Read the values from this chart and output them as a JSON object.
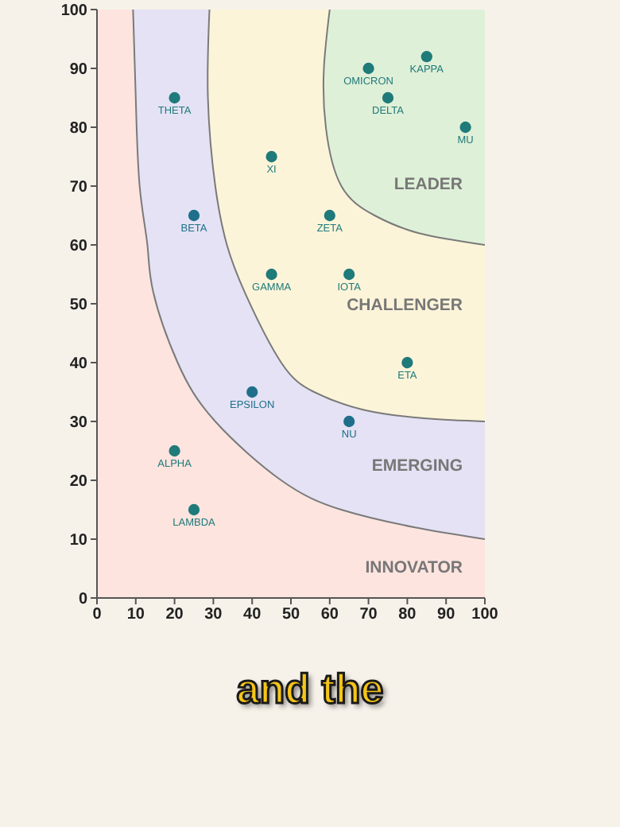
{
  "chart_data": {
    "type": "scatter",
    "xlim": [
      0,
      100
    ],
    "ylim": [
      0,
      100
    ],
    "xticks": [
      0,
      10,
      20,
      30,
      40,
      50,
      60,
      70,
      80,
      90,
      100
    ],
    "yticks": [
      0,
      10,
      20,
      30,
      40,
      50,
      60,
      70,
      80,
      90,
      100
    ],
    "grid": false,
    "legend": false,
    "marker": "circle",
    "series": [
      {
        "type": "line",
        "marker": "none",
        "color": "#7a7a7a",
        "x": [
          9.3,
          10,
          11,
          13,
          14.5,
          20.8,
          30.5,
          47.5,
          63,
          82,
          100
        ],
        "values": [
          100,
          85,
          70,
          60,
          52,
          40,
          30,
          20,
          15,
          12,
          10
        ]
      },
      {
        "type": "line",
        "marker": "none",
        "color": "#7a7a7a",
        "x": [
          29,
          28.6,
          30.5,
          33.5,
          38.4,
          47.5,
          56,
          68.6,
          85,
          100
        ],
        "values": [
          100,
          85,
          70,
          60,
          51.5,
          40,
          35,
          32,
          30.5,
          30
        ]
      },
      {
        "type": "line",
        "marker": "none",
        "color": "#7a7a7a",
        "x": [
          60,
          58.5,
          59,
          63,
          71.6,
          83,
          100
        ],
        "values": [
          100,
          90,
          80,
          70,
          65,
          62,
          60
        ]
      },
      {
        "name": "THETA",
        "color": "#1f7a7a",
        "x": [
          20
        ],
        "values": [
          85
        ]
      },
      {
        "name": "BETA",
        "color": "#1f6f8a",
        "x": [
          25
        ],
        "values": [
          65
        ]
      },
      {
        "name": "XI",
        "color": "#1f7a7a",
        "x": [
          45
        ],
        "values": [
          75
        ]
      },
      {
        "name": "ZETA",
        "color": "#1f7a7a",
        "x": [
          60
        ],
        "values": [
          65
        ]
      },
      {
        "name": "GAMMA",
        "color": "#1f7a7a",
        "x": [
          45
        ],
        "values": [
          55
        ]
      },
      {
        "name": "IOTA",
        "color": "#1f7a7a",
        "x": [
          65
        ],
        "values": [
          55
        ]
      },
      {
        "name": "OMICRON",
        "color": "#1f7a7a",
        "x": [
          70
        ],
        "values": [
          90
        ]
      },
      {
        "name": "KAPPA",
        "color": "#1f7a7a",
        "x": [
          85
        ],
        "values": [
          92
        ]
      },
      {
        "name": "DELTA",
        "color": "#1f7a7a",
        "x": [
          75
        ],
        "values": [
          85
        ]
      },
      {
        "name": "MU",
        "color": "#1f7a7a",
        "x": [
          95
        ],
        "values": [
          80
        ]
      },
      {
        "name": "ETA",
        "color": "#1f7a7a",
        "x": [
          80
        ],
        "values": [
          40
        ]
      },
      {
        "name": "EPSILON",
        "color": "#1f6f8a",
        "x": [
          40
        ],
        "values": [
          35
        ]
      },
      {
        "name": "NU",
        "color": "#1f6f8a",
        "x": [
          65
        ],
        "values": [
          30
        ]
      },
      {
        "name": "ALPHA",
        "color": "#1f7a7a",
        "x": [
          20
        ],
        "values": [
          25
        ]
      },
      {
        "name": "LAMBDA",
        "color": "#1f7a7a",
        "x": [
          25
        ],
        "values": [
          15
        ]
      }
    ],
    "annotations": [
      "LEADER",
      "CHALLENGER",
      "EMERGING",
      "INNOVATOR",
      "and the"
    ]
  }
}
